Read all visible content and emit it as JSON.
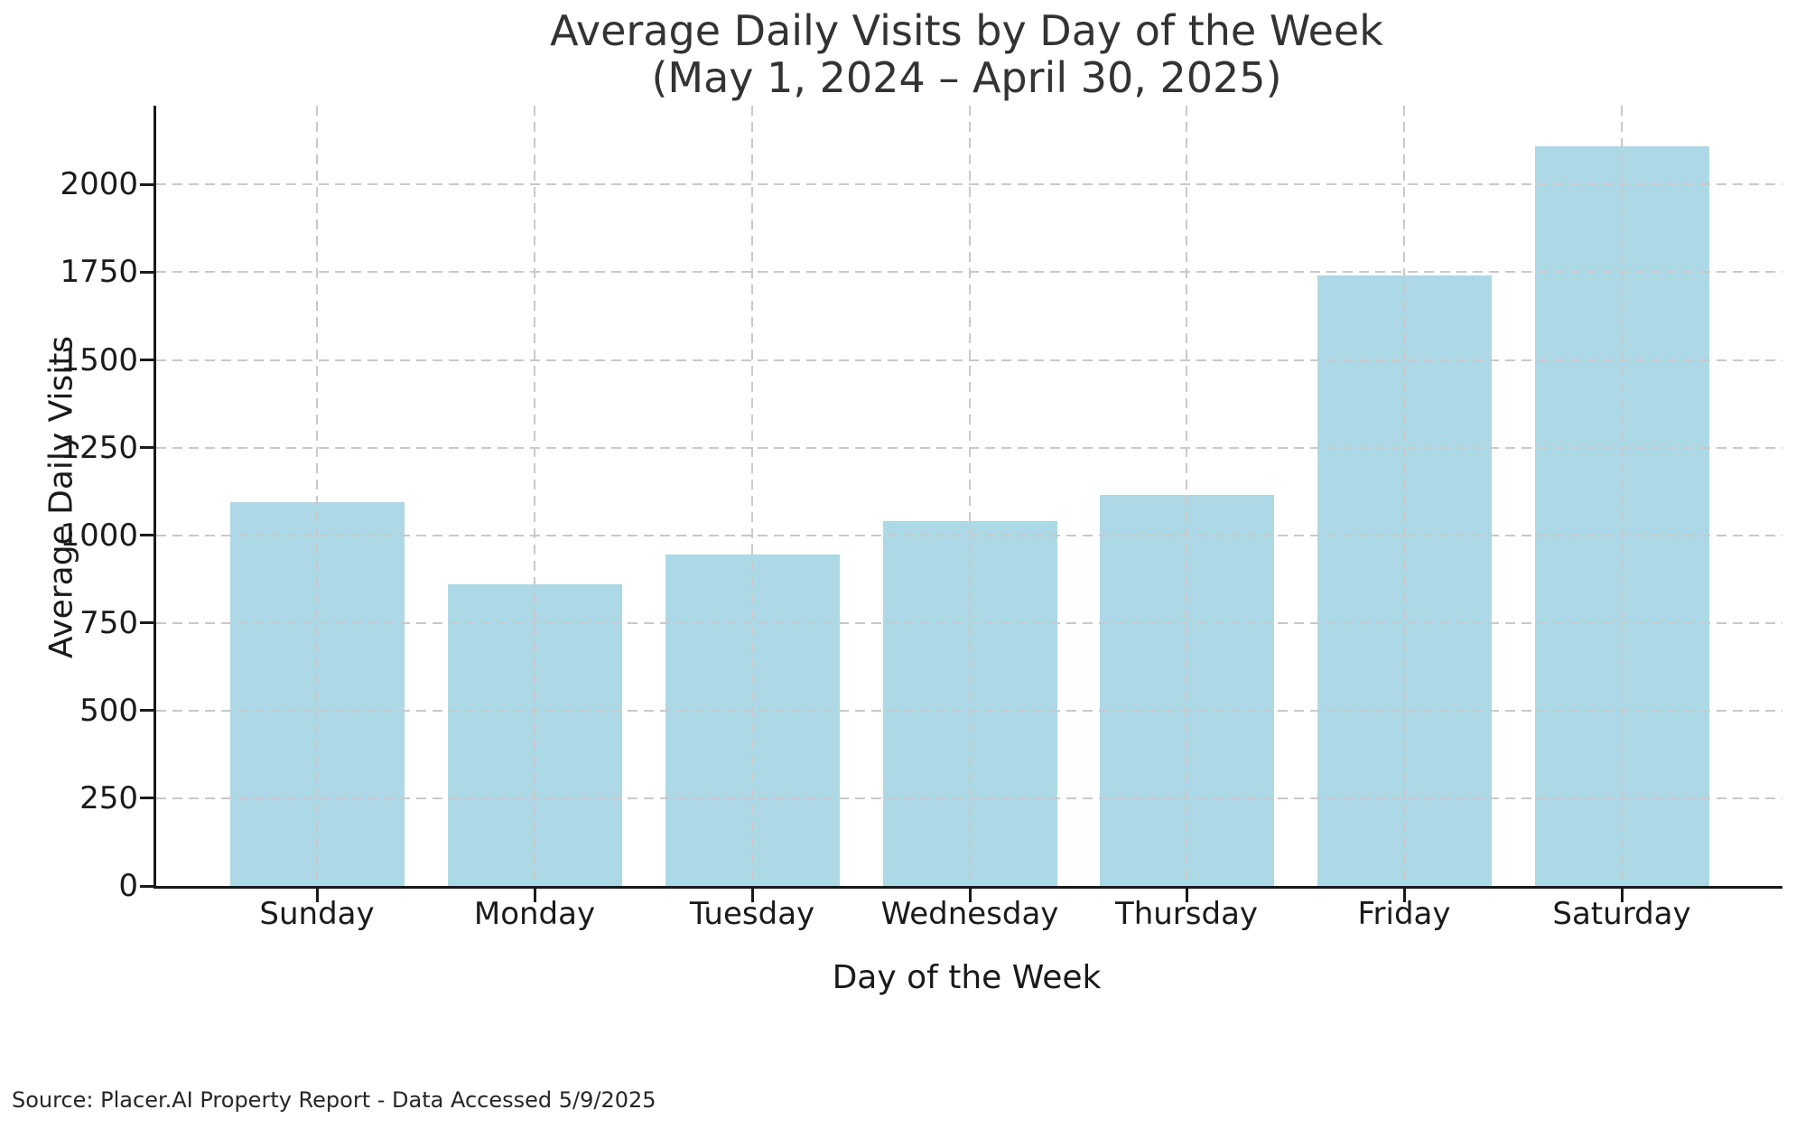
{
  "title": {
    "line1": "Average Daily Visits by Day of the Week",
    "line2": "(May 1, 2024 – April 30, 2025)"
  },
  "source_note": "Source: Placer.AI Property Report - Data Accessed 5/9/2025",
  "chart_data": {
    "type": "bar",
    "title": "Average Daily Visits by Day of the Week",
    "subtitle": "(May 1, 2024 – April 30, 2025)",
    "categories": [
      "Sunday",
      "Monday",
      "Tuesday",
      "Wednesday",
      "Thursday",
      "Friday",
      "Saturday"
    ],
    "values": [
      1095,
      860,
      945,
      1040,
      1115,
      1740,
      2110
    ],
    "xlabel": "Day of the Week",
    "ylabel": "Average Daily Visits",
    "ylim": [
      0,
      2225
    ],
    "yticks": [
      0,
      250,
      500,
      750,
      1000,
      1250,
      1500,
      1750,
      2000
    ],
    "grid": "dashed gridlines on both axes, drawn above bars",
    "legend_position": "none",
    "bar_color": "#ADD8E6",
    "grid_color": "#c9c9c9",
    "axis_color": "#1a1a1a",
    "text_color": "#1a1a1a",
    "title_color": "#333333"
  }
}
